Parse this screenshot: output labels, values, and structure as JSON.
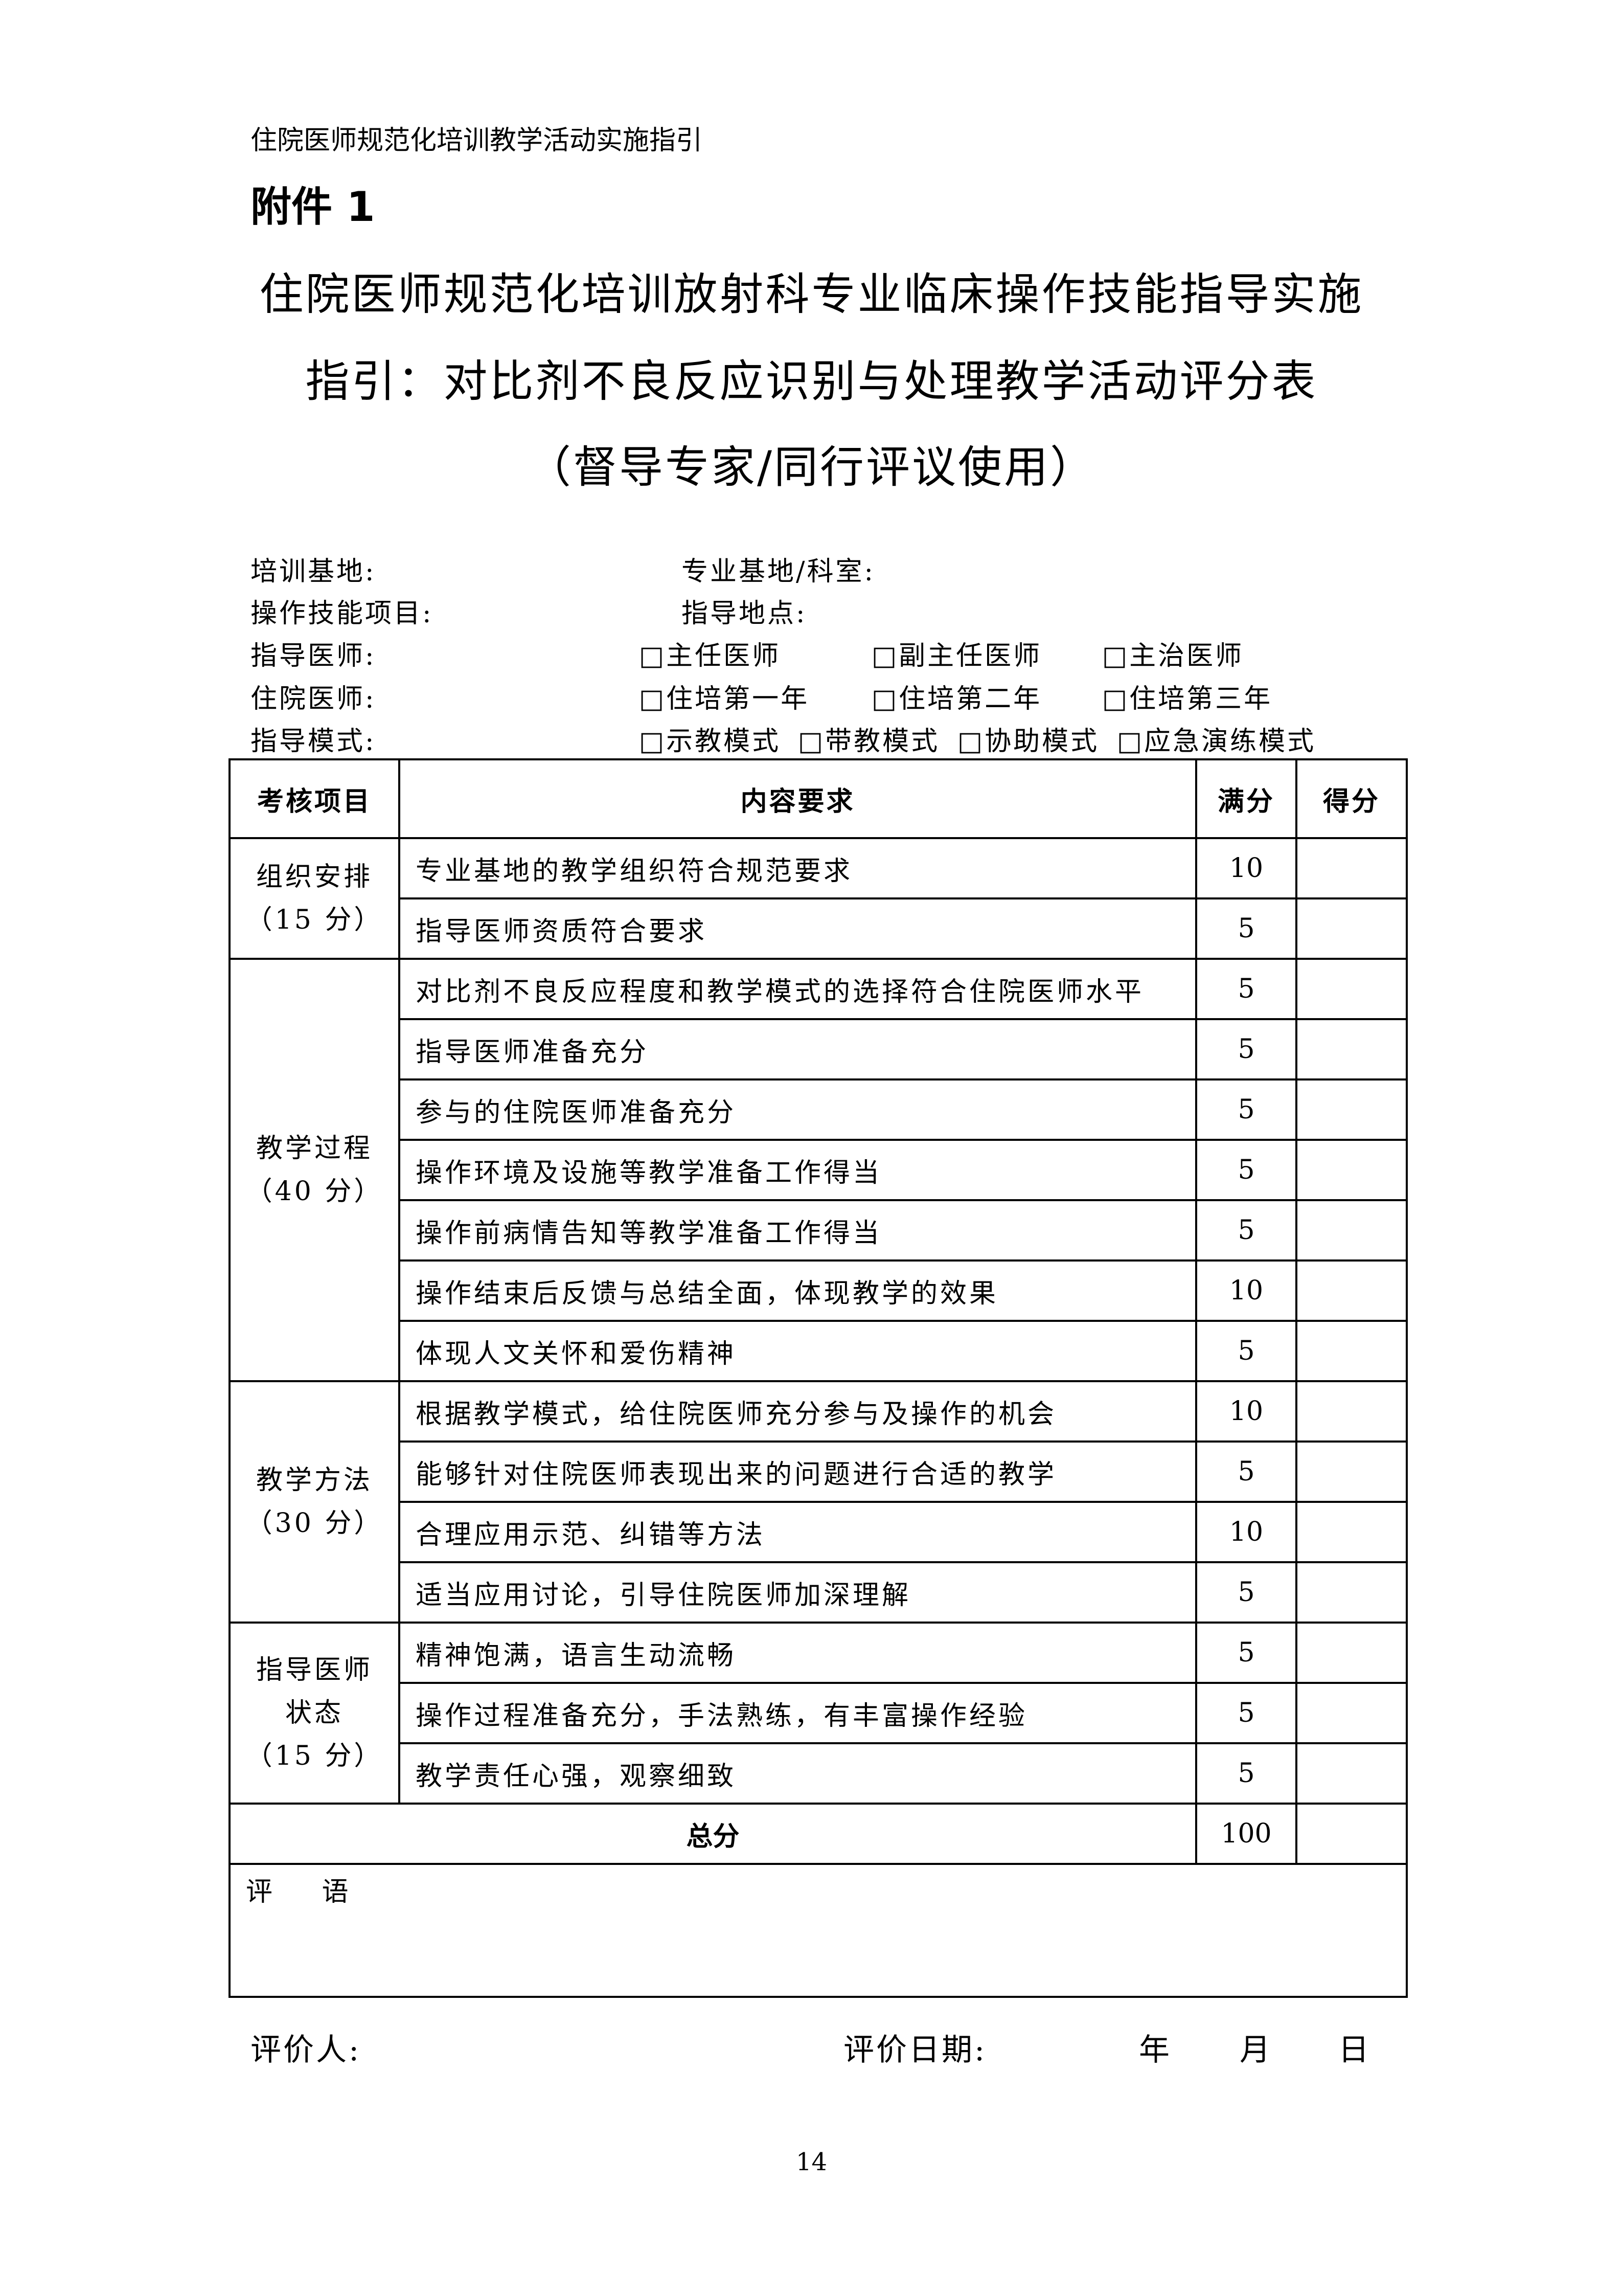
{
  "header": "住院医师规范化培训教学活动实施指引",
  "annex": "附件 1",
  "title": [
    "住院医师规范化培训放射科专业临床操作技能指导实施",
    "指引：对比剂不良反应识别与处理教学活动评分表",
    "（督导专家/同行评议使用）"
  ],
  "info": {
    "base": "培训基地:",
    "dept": "专业基地/科室:",
    "skill": "操作技能项目:",
    "place": "指导地点:",
    "teacher": "指导医师:",
    "teacher_opts": [
      "□主任医师",
      "□副主任医师",
      "□主治医师"
    ],
    "resident": "住院医师:",
    "resident_opts": [
      "□住培第一年",
      "□住培第二年",
      "□住培第三年"
    ],
    "mode": "指导模式:",
    "mode_opts": [
      "□示教模式",
      "□带教模式",
      "□协助模式",
      "□应急演练模式"
    ]
  },
  "table": {
    "headers": [
      "考核项目",
      "内容要求",
      "满分",
      "得分"
    ],
    "groups": [
      {
        "name": "组织安排",
        "points": "（15 分）",
        "items": [
          [
            "专业基地的教学组织符合规范要求",
            "10"
          ],
          [
            "指导医师资质符合要求",
            "5"
          ]
        ]
      },
      {
        "name": "教学过程",
        "points": "（40 分）",
        "items": [
          [
            "对比剂不良反应程度和教学模式的选择符合住院医师水平",
            "5"
          ],
          [
            "指导医师准备充分",
            "5"
          ],
          [
            "参与的住院医师准备充分",
            "5"
          ],
          [
            "操作环境及设施等教学准备工作得当",
            "5"
          ],
          [
            "操作前病情告知等教学准备工作得当",
            "5"
          ],
          [
            "操作结束后反馈与总结全面，体现教学的效果",
            "10"
          ],
          [
            "体现人文关怀和爱伤精神",
            "5"
          ]
        ]
      },
      {
        "name": "教学方法",
        "points": "（30 分）",
        "items": [
          [
            "根据教学模式，给住院医师充分参与及操作的机会",
            "10"
          ],
          [
            "能够针对住院医师表现出来的问题进行合适的教学",
            "5"
          ],
          [
            "合理应用示范、纠错等方法",
            "10"
          ],
          [
            "适当应用讨论，引导住院医师加深理解",
            "5"
          ]
        ]
      },
      {
        "name": "指导医师",
        "name2": "状态",
        "points": "（15 分）",
        "items": [
          [
            "精神饱满，语言生动流畅",
            "5"
          ],
          [
            "操作过程准备充分，手法熟练，有丰富操作经验",
            "5"
          ],
          [
            "教学责任心强，观察细致",
            "5"
          ]
        ]
      }
    ],
    "total_label": "总分",
    "total_value": "100",
    "comment_label": "评 语"
  },
  "footer": {
    "evaluator": "评价人:",
    "date": "评价日期:",
    "year": "年",
    "month": "月",
    "day": "日"
  },
  "page_number": "14"
}
